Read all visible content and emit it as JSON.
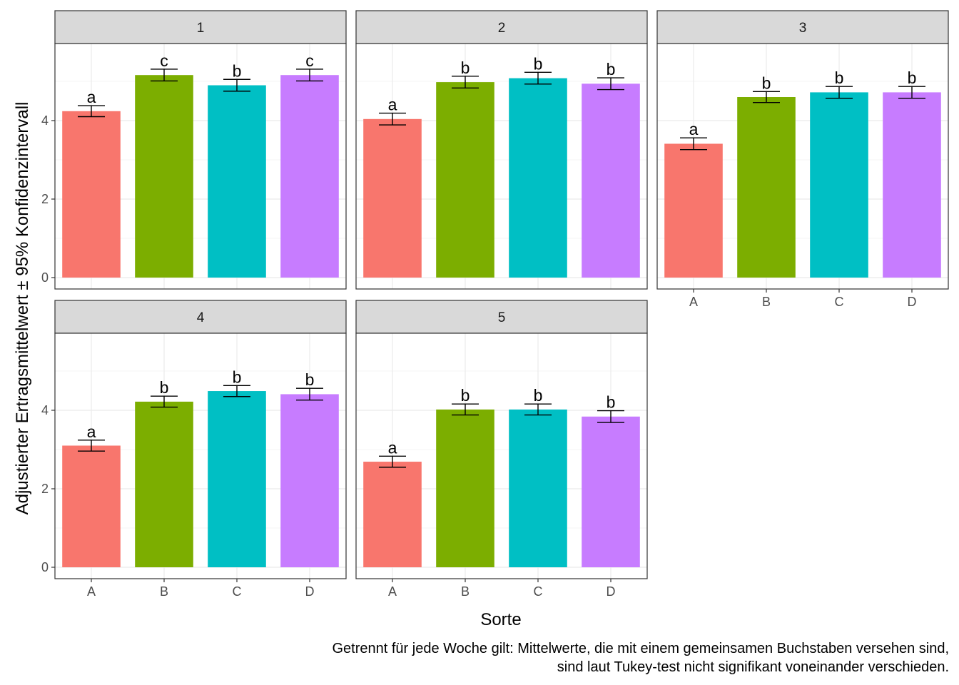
{
  "chart_data": {
    "type": "bar",
    "facet_variable": "",
    "categories": [
      "A",
      "B",
      "C",
      "D"
    ],
    "xlabel": "Sorte",
    "ylabel": "Adjustierter Ertragsmittelwert ± 95% Konfidenzintervall",
    "ylim": [
      0,
      5.9
    ],
    "yticks": [
      0,
      2,
      4
    ],
    "grid": true,
    "colors": {
      "A": "#F8766D",
      "B": "#7CAE00",
      "C": "#00BFC4",
      "D": "#C77CFF"
    },
    "strip_fill": "#D9D9D9",
    "facets": [
      {
        "label": "1",
        "values": [
          4.24,
          5.16,
          4.9,
          5.16
        ],
        "ci_low": [
          4.1,
          5.01,
          4.75,
          5.01
        ],
        "ci_high": [
          4.38,
          5.31,
          5.05,
          5.31
        ],
        "letters": [
          "a",
          "c",
          "b",
          "c"
        ]
      },
      {
        "label": "2",
        "values": [
          4.04,
          4.98,
          5.08,
          4.94
        ],
        "ci_low": [
          3.89,
          4.83,
          4.93,
          4.79
        ],
        "ci_high": [
          4.19,
          5.13,
          5.23,
          5.09
        ],
        "letters": [
          "a",
          "b",
          "b",
          "b"
        ]
      },
      {
        "label": "3",
        "values": [
          3.41,
          4.6,
          4.72,
          4.72
        ],
        "ci_low": [
          3.26,
          4.46,
          4.57,
          4.57
        ],
        "ci_high": [
          3.56,
          4.74,
          4.87,
          4.87
        ],
        "letters": [
          "a",
          "b",
          "b",
          "b"
        ]
      },
      {
        "label": "4",
        "values": [
          3.1,
          4.22,
          4.49,
          4.41
        ],
        "ci_low": [
          2.96,
          4.08,
          4.35,
          4.26
        ],
        "ci_high": [
          3.24,
          4.36,
          4.63,
          4.56
        ],
        "letters": [
          "a",
          "b",
          "b",
          "b"
        ]
      },
      {
        "label": "5",
        "values": [
          2.69,
          4.02,
          4.02,
          3.84
        ],
        "ci_low": [
          2.55,
          3.88,
          3.88,
          3.69
        ],
        "ci_high": [
          2.83,
          4.16,
          4.16,
          3.99
        ],
        "letters": [
          "a",
          "b",
          "b",
          "b"
        ]
      }
    ]
  },
  "caption": {
    "line1": "Getrennt für jede Woche gilt: Mittelwerte, die mit einem gemeinsamen Buchstaben versehen sind,",
    "line2": "sind laut Tukey-test nicht signifikant voneinander verschieden."
  }
}
